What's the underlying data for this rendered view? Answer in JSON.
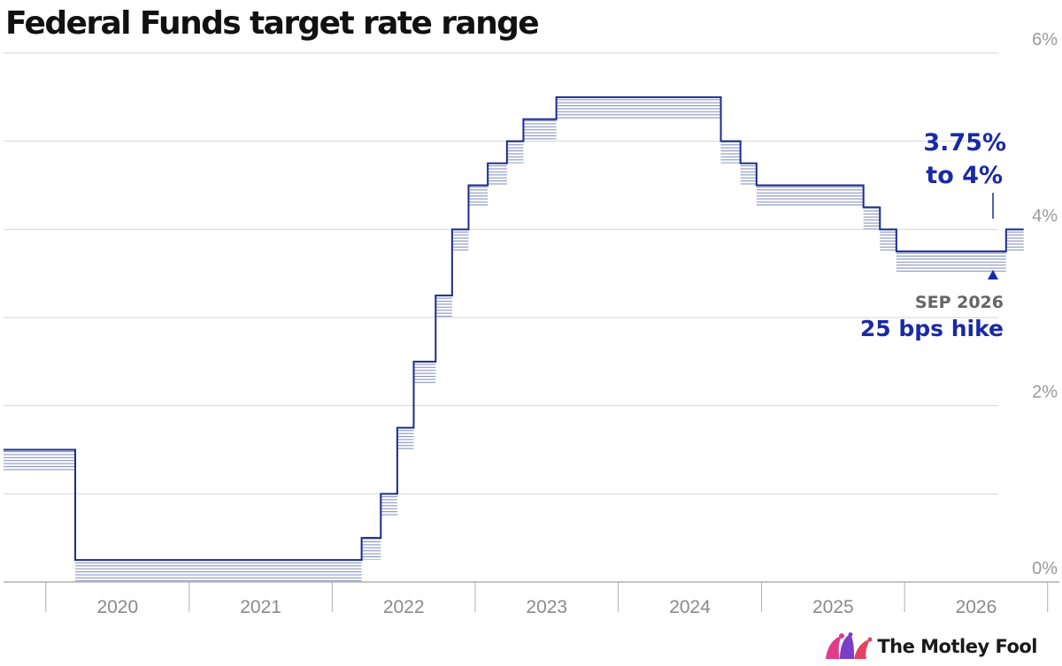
{
  "chart_data": {
    "type": "line",
    "title": "Federal Funds target rate range",
    "xlabel": "",
    "ylabel": "",
    "xlim": [
      "2019-09-15",
      "2027-01-31"
    ],
    "ylim": [
      0,
      6
    ],
    "y_tick_values": [
      0,
      2,
      4,
      6
    ],
    "y_ticks": [
      "0%",
      "2%",
      "4%",
      "6%"
    ],
    "x_ticks": [
      {
        "date": "2020-01-01",
        "label": "2020"
      },
      {
        "date": "2021-01-01",
        "label": "2021"
      },
      {
        "date": "2022-01-01",
        "label": "2022"
      },
      {
        "date": "2023-01-01",
        "label": "2023"
      },
      {
        "date": "2024-01-01",
        "label": "2024"
      },
      {
        "date": "2025-01-01",
        "label": "2025"
      },
      {
        "date": "2026-01-01",
        "label": "2026"
      }
    ],
    "grid": true,
    "series": [
      {
        "steps": [
          {
            "date": "2019-09-15",
            "lower": 1.25,
            "upper": 1.5
          },
          {
            "date": "2020-03-16",
            "lower": 0.0,
            "upper": 0.25
          },
          {
            "date": "2022-03-17",
            "lower": 0.25,
            "upper": 0.5
          },
          {
            "date": "2022-05-05",
            "lower": 0.75,
            "upper": 1.0
          },
          {
            "date": "2022-06-16",
            "lower": 1.5,
            "upper": 1.75
          },
          {
            "date": "2022-07-28",
            "lower": 2.25,
            "upper": 2.5
          },
          {
            "date": "2022-09-22",
            "lower": 3.0,
            "upper": 3.25
          },
          {
            "date": "2022-11-03",
            "lower": 3.75,
            "upper": 4.0
          },
          {
            "date": "2022-12-15",
            "lower": 4.25,
            "upper": 4.5
          },
          {
            "date": "2023-02-02",
            "lower": 4.5,
            "upper": 4.75
          },
          {
            "date": "2023-03-23",
            "lower": 4.75,
            "upper": 5.0
          },
          {
            "date": "2023-05-04",
            "lower": 5.0,
            "upper": 5.25
          },
          {
            "date": "2023-07-27",
            "lower": 5.25,
            "upper": 5.5
          },
          {
            "date": "2024-09-19",
            "lower": 4.75,
            "upper": 5.0
          },
          {
            "date": "2024-11-08",
            "lower": 4.5,
            "upper": 4.75
          },
          {
            "date": "2024-12-19",
            "lower": 4.25,
            "upper": 4.5
          },
          {
            "date": "2025-09-18",
            "lower": 4.0,
            "upper": 4.25
          },
          {
            "date": "2025-10-30",
            "lower": 3.75,
            "upper": 4.0
          },
          {
            "date": "2025-12-11",
            "lower": 3.5,
            "upper": 3.75
          },
          {
            "date": "2026-09-17",
            "lower": 3.75,
            "upper": 4.0
          }
        ],
        "end_date": "2026-11-01"
      }
    ],
    "annotations": [
      {
        "id": "range",
        "lines": [
          "3.75%",
          "to 4%"
        ]
      },
      {
        "id": "event",
        "date_label": "SEP 2026",
        "note": "25 bps hike"
      }
    ],
    "colors": {
      "line": "#1a2d8c",
      "band": "#8893c4",
      "grid": "#d6d6d6",
      "axis": "#b0b0b0",
      "tick_text": "#9a9a9a",
      "annotation": "#1a2aa6",
      "annotation_date": "#666666"
    }
  },
  "branding": {
    "name": "The Motley Fool",
    "logo_icon": "jester-cap-icon"
  }
}
